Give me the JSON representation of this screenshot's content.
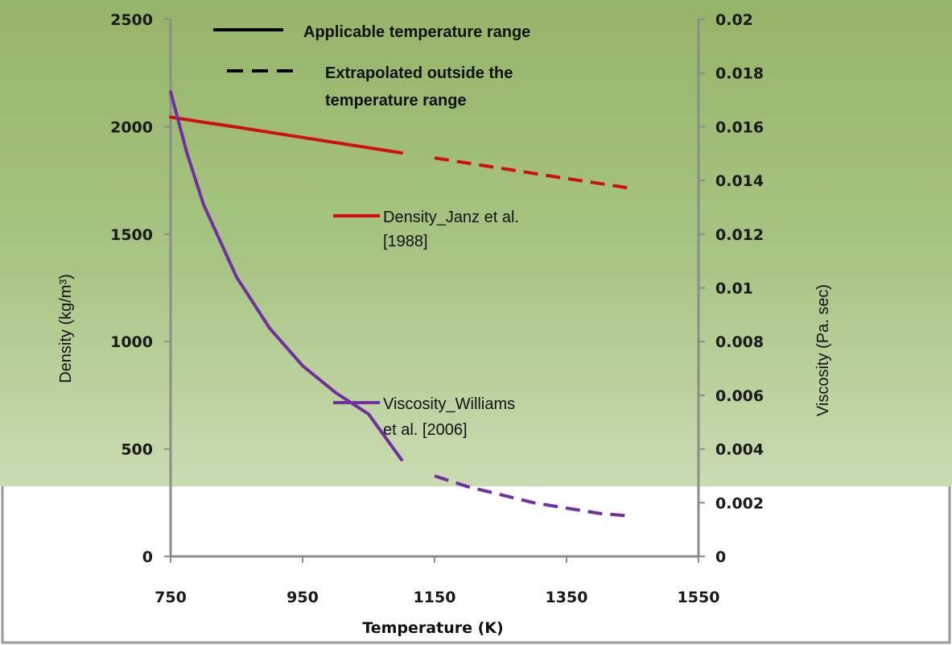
{
  "chart_data": {
    "type": "line",
    "xlabel": "Temperature (K)",
    "ylabel": "Density (kg/m³)",
    "y2label": "Viscosity (Pa. sec)",
    "xlim": [
      750,
      1550
    ],
    "ylim": [
      0,
      2500
    ],
    "y2lim": [
      0,
      0.02
    ],
    "x_ticks": [
      "750",
      "950",
      "1150",
      "1350",
      "1550"
    ],
    "y_ticks": [
      "0",
      "500",
      "1000",
      "1500",
      "2000",
      "2500"
    ],
    "y2_ticks": [
      "0",
      "0.002",
      "0.004",
      "0.006",
      "0.008",
      "0.01",
      "0.012",
      "0.014",
      "0.016",
      "0.018",
      "0.02"
    ],
    "legend": {
      "solid_label": "Applicable temperature range",
      "dashed_label_line1": "Extrapolated outside the",
      "dashed_label_line2": "temperature range"
    },
    "series": [
      {
        "name_line1": "Density_Janz et al.",
        "name_line2": "[1988]",
        "axis": "left",
        "color": "#d01010",
        "applicable_range": [
          750,
          1100
        ],
        "x": [
          750,
          800,
          850,
          900,
          950,
          1000,
          1050,
          1100,
          1150,
          1200,
          1250,
          1300,
          1350,
          1400,
          1450
        ],
        "y": [
          2045,
          2021,
          1998,
          1974,
          1950,
          1926,
          1902,
          1878,
          1855,
          1831,
          1807,
          1783,
          1759,
          1736,
          1712
        ]
      },
      {
        "name_line1": "Viscosity_Williams",
        "name_line2": "et al. [2006]",
        "axis": "right",
        "color": "#7030a0",
        "applicable_range": [
          750,
          1100
        ],
        "x": [
          750,
          775,
          800,
          850,
          900,
          950,
          1000,
          1050,
          1100,
          1150,
          1200,
          1250,
          1300,
          1350,
          1400,
          1450
        ],
        "y": [
          0.0173,
          0.015,
          0.0131,
          0.0104,
          0.0085,
          0.0071,
          0.0061,
          0.0053,
          0.0036,
          0.003,
          0.0026,
          0.0023,
          0.002,
          0.0018,
          0.0016,
          0.0015
        ]
      }
    ],
    "colors": {
      "plot_bg_top": "#9ab96e",
      "plot_bg_bottom": "#c7d9ad"
    }
  }
}
